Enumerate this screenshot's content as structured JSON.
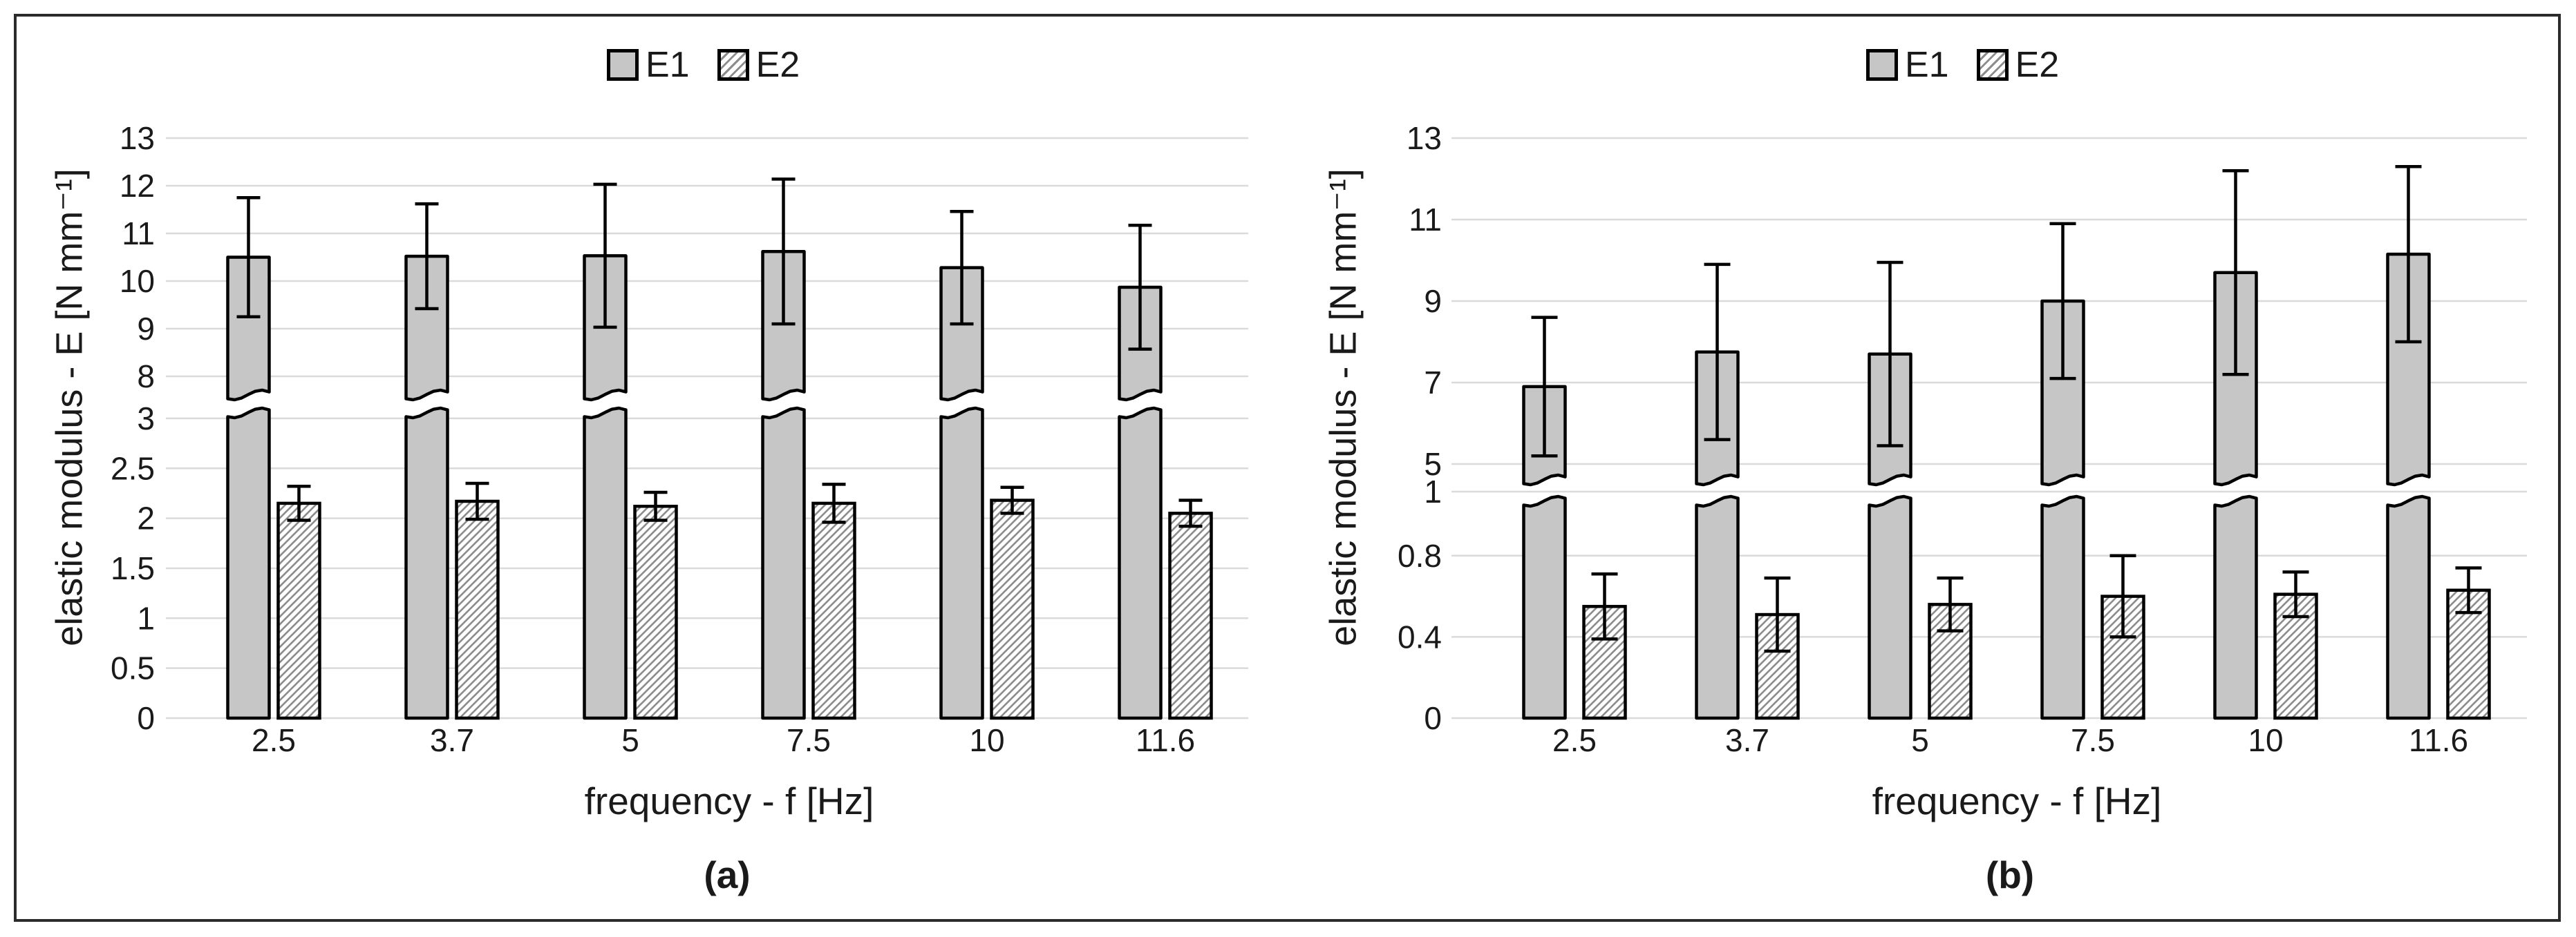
{
  "figure": {
    "background": "#ffffff",
    "border_color": "#2b2b2b",
    "text_color": "#1a1a1a",
    "gridline_color": "#dadada",
    "bar_fill": "#c6c6c6",
    "bar_border": "#000000",
    "hatch_line_color": "#8c8c8c"
  },
  "chart_data": [
    {
      "type": "bar",
      "caption": "(a)",
      "legend": [
        "E1",
        "E2"
      ],
      "xlabel": "frequency - f [Hz]",
      "ylabel": "elastic modulus - E [N mm⁻¹]",
      "categories": [
        "2.5",
        "3.7",
        "5",
        "7.5",
        "10",
        "11.6"
      ],
      "grid": true,
      "legend_position": "top",
      "axis_break": true,
      "upper_axis": {
        "ticks": [
          "13",
          "12",
          "11",
          "10",
          "9",
          "8"
        ],
        "range": [
          7.5,
          13.3
        ]
      },
      "lower_axis": {
        "ticks": [
          "3",
          "2.5",
          "2",
          "1.5",
          "1",
          "0.5",
          "0"
        ],
        "range": [
          0,
          3.1
        ]
      },
      "series": [
        {
          "name": "E1",
          "style": "solid",
          "values": [
            10.5,
            10.52,
            10.53,
            10.62,
            10.28,
            9.87
          ],
          "errors": [
            1.25,
            1.1,
            1.5,
            1.52,
            1.18,
            1.3
          ]
        },
        {
          "name": "E2",
          "style": "hatched",
          "values": [
            2.15,
            2.17,
            2.12,
            2.15,
            2.18,
            2.05
          ],
          "errors": [
            0.17,
            0.18,
            0.14,
            0.19,
            0.13,
            0.13
          ]
        }
      ]
    },
    {
      "type": "bar",
      "caption": "(b)",
      "legend": [
        "E1",
        "E2"
      ],
      "xlabel": "frequency - f [Hz]",
      "ylabel": "elastic modulus - E [N mm⁻¹]",
      "categories": [
        "2.5",
        "3.7",
        "5",
        "7.5",
        "10",
        "11.6"
      ],
      "grid": true,
      "legend_position": "top",
      "axis_break": true,
      "upper_axis": {
        "ticks": [
          "13",
          "11",
          "9",
          "7",
          "5"
        ],
        "range": [
          4.4,
          13.4
        ]
      },
      "lower_axis": {
        "ticks": [
          "1",
          "0.8",
          "0.4",
          "0"
        ],
        "range": [
          0,
          1.0
        ]
      },
      "series": [
        {
          "name": "E1",
          "style": "solid",
          "values": [
            6.9,
            7.75,
            7.7,
            9.0,
            9.7,
            10.15
          ],
          "errors": [
            1.7,
            2.15,
            2.25,
            1.9,
            2.5,
            2.15
          ]
        },
        {
          "name": "E2",
          "style": "hatched",
          "values": [
            0.55,
            0.51,
            0.56,
            0.6,
            0.61,
            0.63
          ],
          "errors": [
            0.16,
            0.18,
            0.13,
            0.2,
            0.11,
            0.11
          ]
        }
      ]
    }
  ]
}
